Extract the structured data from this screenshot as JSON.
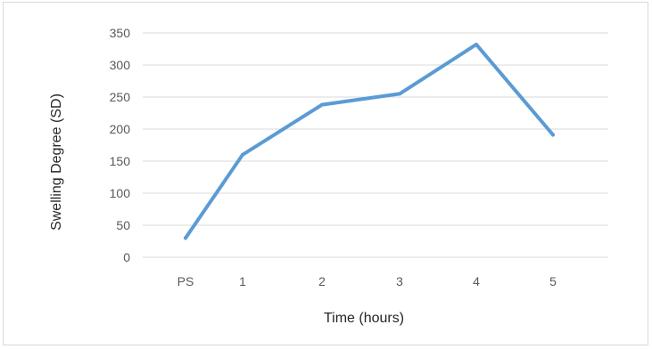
{
  "chart_data": {
    "type": "line",
    "title": "",
    "xlabel": "Time (hours)",
    "ylabel": "Swelling Degree (SD)",
    "categories": [
      "PS",
      "1",
      "2",
      "3",
      "4",
      "5"
    ],
    "series": [
      {
        "values": [
          30,
          160,
          238,
          255,
          332,
          191
        ],
        "color": "#5b9bd5"
      }
    ],
    "ylim": [
      0,
      350
    ],
    "yticks": [
      0,
      50,
      100,
      150,
      200,
      250,
      300,
      350
    ],
    "grid": true,
    "legend": "none"
  }
}
